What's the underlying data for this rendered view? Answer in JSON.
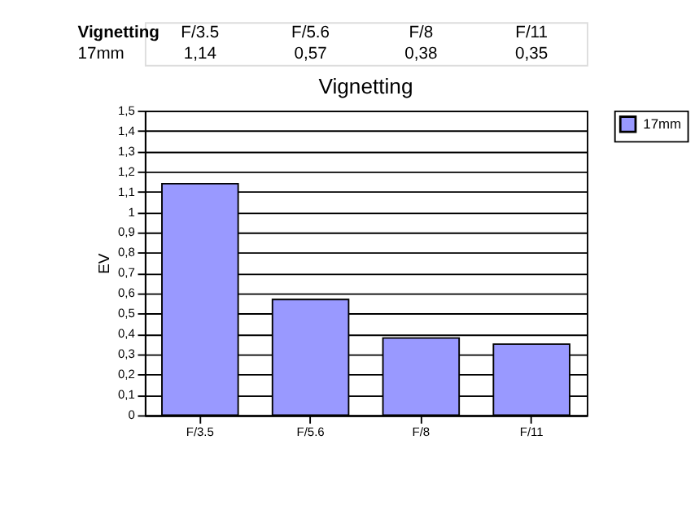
{
  "chart_data": {
    "type": "bar",
    "title": "Vignetting",
    "ylabel": "EV",
    "categories": [
      "F/3.5",
      "F/5.6",
      "F/8",
      "F/11"
    ],
    "series": [
      {
        "name": "17mm",
        "color": "#9999ff",
        "values": [
          1.14,
          0.57,
          0.38,
          0.35
        ],
        "value_labels": [
          "1,14",
          "0,57",
          "0,38",
          "0,35"
        ]
      }
    ],
    "annotations": [
      "Vignetting"
    ],
    "ylim": [
      0,
      1.5
    ],
    "yticks": [
      0,
      {
        "value": 0.1,
        "label": "0,1"
      },
      {
        "value": 0.2,
        "label": "0,2"
      },
      {
        "value": 0.3,
        "label": "0,3"
      },
      {
        "value": 0.4,
        "label": "0,4"
      },
      {
        "value": 0.5,
        "label": "0,5"
      },
      {
        "value": 0.6,
        "label": "0,6"
      },
      {
        "value": 0.7,
        "label": "0,7"
      },
      {
        "value": 0.8,
        "label": "0,8"
      },
      {
        "value": 0.9,
        "label": "0,9"
      },
      1,
      {
        "value": 1.1,
        "label": "1,1"
      },
      {
        "value": 1.2,
        "label": "1,2"
      },
      {
        "value": 1.3,
        "label": "1,3"
      },
      {
        "value": 1.4,
        "label": "1,4"
      },
      {
        "value": 1.5,
        "label": "1,5"
      }
    ],
    "grid": "y",
    "legend": "right"
  }
}
